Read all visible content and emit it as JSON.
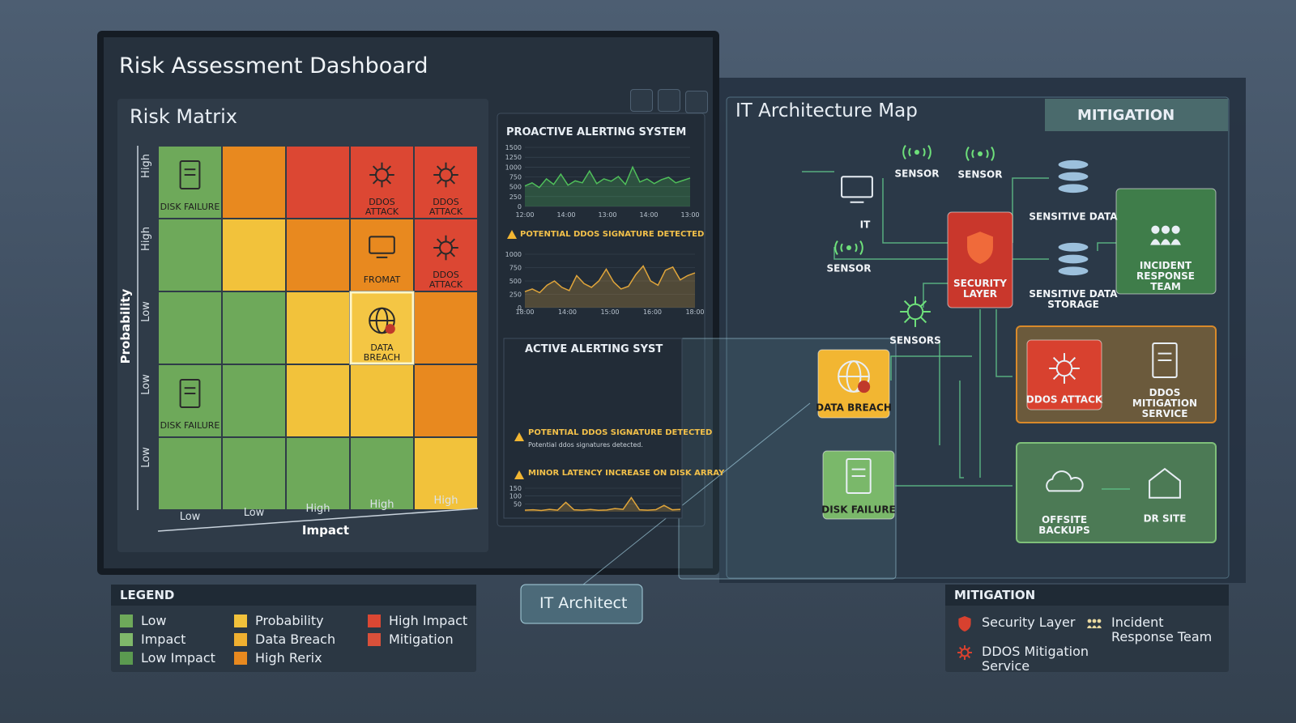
{
  "header": {
    "title": "Risk Assessment Dashboard"
  },
  "risk_matrix": {
    "title": "Risk Matrix",
    "y_axis_label": "Probability",
    "x_axis_label": "Impact",
    "row_labels": [
      "High",
      "High",
      "Low",
      "Low",
      "Low"
    ],
    "col_labels": [
      "Low",
      "Low",
      "High",
      "High",
      "High"
    ],
    "rows": [
      [
        {
          "color": "#6ea95a",
          "label": "DISK FAILURE",
          "icon": "server"
        },
        {
          "color": "#e8891f"
        },
        {
          "color": "#dc4733"
        },
        {
          "color": "#dc4733",
          "label": "DDOS ATTACK",
          "icon": "ddos"
        },
        {
          "color": "#dc4733",
          "label": "DDOS ATTACK",
          "icon": "ddos"
        }
      ],
      [
        {
          "color": "#6ea95a"
        },
        {
          "color": "#f2c23b"
        },
        {
          "color": "#e8891f"
        },
        {
          "color": "#e8891f",
          "label": "FROMAT",
          "icon": "monitor"
        },
        {
          "color": "#dc4733",
          "label": "DDOS ATTACK",
          "icon": "ddos"
        }
      ],
      [
        {
          "color": "#6ea95a"
        },
        {
          "color": "#6ea95a"
        },
        {
          "color": "#f2c23b"
        },
        {
          "color": "#f4c644",
          "label": "DATA BREACH",
          "icon": "globe",
          "highlight": true
        },
        {
          "color": "#e8891f"
        }
      ],
      [
        {
          "color": "#6ea95a",
          "label": "DISK FAILURE",
          "icon": "server"
        },
        {
          "color": "#6ea95a"
        },
        {
          "color": "#f2c23b"
        },
        {
          "color": "#f2c23b"
        },
        {
          "color": "#e8891f"
        }
      ],
      [
        {
          "color": "#6ea95a"
        },
        {
          "color": "#6ea95a"
        },
        {
          "color": "#6ea95a"
        },
        {
          "color": "#6ea95a"
        },
        {
          "color": "#f2c23b"
        }
      ]
    ]
  },
  "alerting": {
    "title": "PROACTIVE ALERTING SYSTEM",
    "charts": [
      {
        "type": "line",
        "color": "#4fbf5a",
        "ylim": [
          0,
          1500
        ],
        "yticks": [
          0,
          250,
          500,
          750,
          1000,
          1250,
          1500
        ],
        "x_labels": [
          "12:00",
          "14:00",
          "13:00",
          "14:00",
          "13:00"
        ],
        "values": [
          520,
          600,
          480,
          700,
          560,
          820,
          540,
          650,
          600,
          900,
          580,
          700,
          640,
          760,
          560,
          1000,
          620,
          700,
          580,
          680,
          740,
          600,
          660,
          720
        ]
      },
      {
        "type": "line",
        "color": "#e0a53a",
        "ylim": [
          0,
          1000
        ],
        "yticks": [
          0,
          250,
          500,
          750,
          1000
        ],
        "x_labels": [
          "18:00",
          "14:00",
          "15:00",
          "16:00",
          "18:00"
        ],
        "values": [
          300,
          350,
          280,
          420,
          500,
          380,
          320,
          600,
          450,
          380,
          500,
          720,
          480,
          350,
          400,
          620,
          780,
          500,
          420,
          700,
          760,
          520,
          600,
          650
        ]
      },
      {
        "type": "line",
        "color": "#e0a53a",
        "ylim": [
          0,
          150
        ],
        "yticks": [
          50,
          100,
          150
        ],
        "values": [
          10,
          12,
          8,
          15,
          10,
          60,
          12,
          10,
          14,
          9,
          11,
          20,
          15,
          90,
          12,
          10,
          13,
          40,
          12,
          15
        ]
      }
    ],
    "alert_1": "POTENTIAL DDOS SIGNATURE DETECTED",
    "second_title": "ACTIVE ALERTING SYST",
    "alert_2": "POTENTIAL DDOS SIGNATURE DETECTED",
    "alert_2_detail": "Potential ddos signatures detected.",
    "alert_3": "MINOR LATENCY INCREASE ON DISK ARRAY"
  },
  "architecture": {
    "title": "IT Architecture Map",
    "mitigation_header": "MITIGATION",
    "nodes": [
      {
        "label": "IT",
        "kind": "computer"
      },
      {
        "label": "SENSOR",
        "kind": "sensor"
      },
      {
        "label": "SENSOR",
        "kind": "sensor"
      },
      {
        "label": "SENSOR",
        "kind": "sensor"
      },
      {
        "label": "SENSORS",
        "kind": "chip"
      },
      {
        "label": "SECURITY LAYER",
        "kind": "box",
        "color": "#c9372c"
      },
      {
        "label": "SENSITIVE DATA",
        "kind": "db"
      },
      {
        "label": "SENSITIVE DATA STORAGE",
        "kind": "db"
      },
      {
        "label": "INCIDENT RESPONSE TEAM",
        "kind": "box",
        "color": "#3f7d4a"
      },
      {
        "label": "DDOS ATTACK",
        "kind": "box",
        "color": "#d8412f"
      },
      {
        "label": "DDOS MITIGATION SERVICE",
        "kind": "server"
      },
      {
        "label": "DATA BREACH",
        "kind": "box",
        "color": "#f2b632"
      },
      {
        "label": "DISK FAILURE",
        "kind": "box",
        "color": "#7ab86a"
      },
      {
        "label": "OFFSITE BACKUPS",
        "kind": "cloud"
      },
      {
        "label": "DR SITE",
        "kind": "building"
      }
    ]
  },
  "legend": {
    "title": "LEGEND",
    "items": [
      {
        "label": "Low",
        "color": "#6ea95a"
      },
      {
        "label": "Impact",
        "color": "#7fb86a"
      },
      {
        "label": "Low Impact",
        "color": "#5b9a50"
      },
      {
        "label": "Probability",
        "color": "#f2c23b"
      },
      {
        "label": "Data Breach",
        "color": "#f0b030"
      },
      {
        "label": "High Rerix",
        "color": "#e8891f"
      },
      {
        "label": "High Impact",
        "color": "#dc4733"
      },
      {
        "label": "Mitigation",
        "color": "#d9503a"
      }
    ]
  },
  "callout": "IT Architect",
  "mitigation_legend": {
    "title": "MITIGATION",
    "items": [
      "Security Layer",
      "DDOS Mitigation Service",
      "Incident Response Team"
    ]
  }
}
